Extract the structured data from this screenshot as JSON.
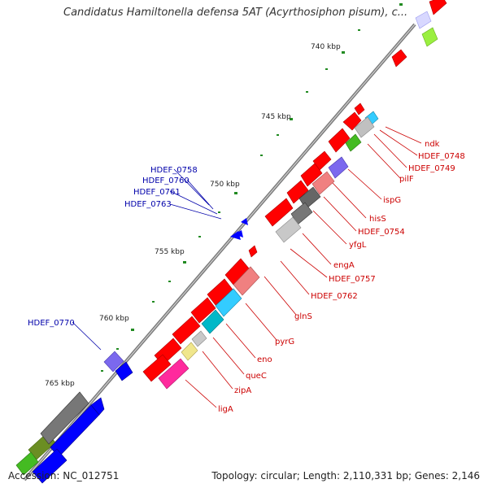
{
  "title": "Candidatus Hamiltonella defensa 5AT (Acyrthosiphon pisum), c...",
  "footer": {
    "accession": "Accession: NC_012751",
    "summary": "Topology: circular; Length: 2,110,331 bp; Genes: 2,146"
  },
  "colors": {
    "backbone": "#888888",
    "forward_strand": "#ff0000",
    "reverse_strand": "#0000ff",
    "label_forward": "#cc0000",
    "label_reverse": "#0000aa",
    "scale_dots": "#228b22"
  },
  "scale_ticks": [
    "740 kbp",
    "745 kbp",
    "750 kbp",
    "755 kbp",
    "760 kbp",
    "765 kbp"
  ],
  "gene_labels_reverse": [
    "HDEF_0758",
    "HDEF_0760",
    "HDEF_0761",
    "HDEF_0763",
    "HDEF_0770"
  ],
  "gene_labels_forward": [
    "ndk",
    "HDEF_0748",
    "HDEF_0749",
    "pilF",
    "ispG",
    "hisS",
    "HDEF_0754",
    "yfgL",
    "engA",
    "HDEF_0757",
    "HDEF_0762",
    "glnS",
    "pyrG",
    "eno",
    "queC",
    "zipA",
    "ligA"
  ]
}
